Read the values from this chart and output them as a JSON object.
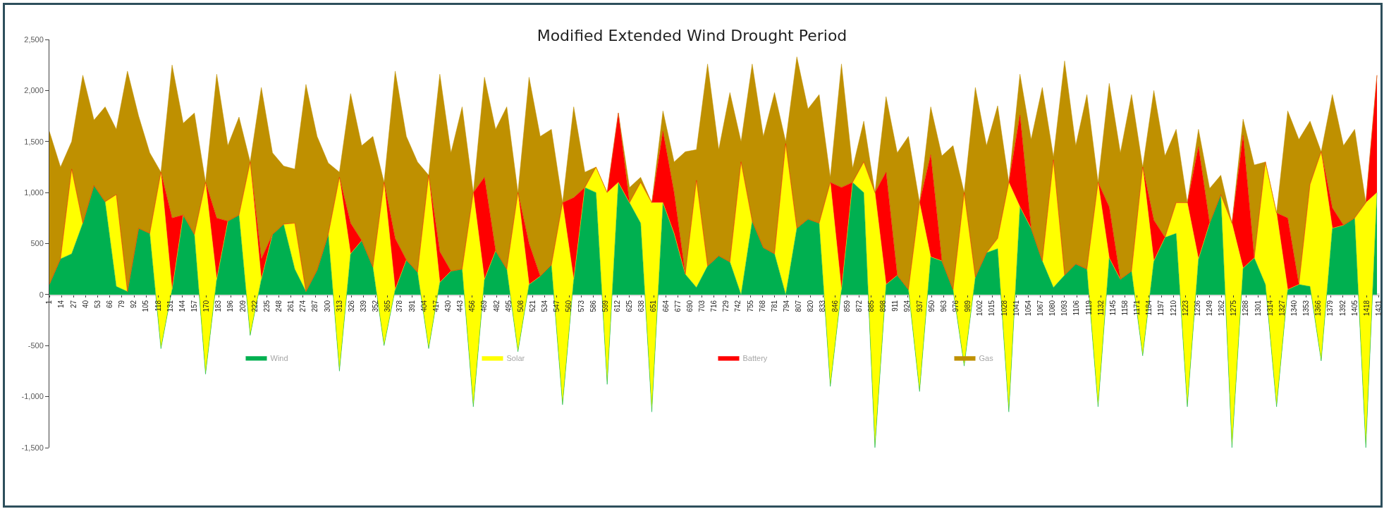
{
  "chart_data": {
    "type": "area",
    "title": "Modified Extended Wind Drought Period",
    "stacked": true,
    "legend": "bottom",
    "grid": false,
    "x": [
      1,
      13,
      25,
      37,
      49,
      61,
      73,
      85,
      97,
      109,
      121,
      133,
      145,
      157,
      169,
      181,
      193,
      205,
      217,
      229,
      241,
      253,
      265,
      277,
      289,
      301,
      313,
      325,
      337,
      349,
      361,
      373,
      385,
      397,
      409,
      421,
      433,
      445,
      457,
      469,
      481,
      493,
      505,
      517,
      529,
      541,
      553,
      565,
      577,
      589,
      601,
      613,
      625,
      637,
      649,
      661,
      673,
      685,
      697,
      709,
      721,
      733,
      745,
      757,
      769,
      781,
      793,
      805,
      817,
      829,
      841,
      853,
      865,
      877,
      889,
      901,
      913,
      925,
      937,
      949,
      961,
      973,
      985,
      997,
      1009,
      1021,
      1033,
      1045,
      1057,
      1069,
      1081,
      1093,
      1105,
      1117,
      1129,
      1141,
      1153,
      1165,
      1177,
      1189,
      1201,
      1213,
      1225,
      1237,
      1249,
      1261,
      1273,
      1285,
      1297,
      1309,
      1321,
      1333,
      1345,
      1357,
      1369,
      1381,
      1393,
      1405,
      1417,
      1429
    ],
    "xlim": [
      1,
      1432
    ],
    "xticks": [
      1,
      14,
      27,
      40,
      53,
      66,
      79,
      92,
      105,
      118,
      131,
      144,
      157,
      170,
      183,
      196,
      209,
      222,
      235,
      248,
      261,
      274,
      287,
      300,
      313,
      326,
      339,
      352,
      365,
      378,
      391,
      404,
      417,
      430,
      443,
      456,
      469,
      482,
      495,
      508,
      521,
      534,
      547,
      560,
      573,
      586,
      599,
      612,
      625,
      638,
      651,
      664,
      677,
      690,
      703,
      716,
      729,
      742,
      755,
      768,
      781,
      794,
      807,
      820,
      833,
      846,
      859,
      872,
      885,
      898,
      911,
      924,
      937,
      950,
      963,
      976,
      989,
      1002,
      1015,
      1028,
      1041,
      1054,
      1067,
      1080,
      1093,
      1106,
      1119,
      1132,
      1145,
      1158,
      1171,
      1184,
      1197,
      1210,
      1223,
      1236,
      1249,
      1262,
      1275,
      1288,
      1301,
      1314,
      1327,
      1340,
      1353,
      1366,
      1379,
      1392,
      1405,
      1418,
      1431
    ],
    "ylim": [
      -1500,
      2500
    ],
    "yticks": [
      {
        "value": -1500,
        "label": "-1,500"
      },
      {
        "value": -1000,
        "label": "-1,000"
      },
      -500,
      0,
      500,
      {
        "value": 1000,
        "label": "1,000"
      },
      {
        "value": 1500,
        "label": "1,500"
      },
      {
        "value": 2000,
        "label": "2,000"
      },
      {
        "value": 2500,
        "label": "2,500"
      }
    ],
    "series": [
      {
        "name": "Wind",
        "color": "#00b050",
        "values": [
          100,
          350,
          400,
          700,
          1070,
          910,
          80,
          30,
          650,
          600,
          -530,
          50,
          780,
          590,
          -780,
          150,
          720,
          780,
          -400,
          150,
          590,
          690,
          250,
          30,
          240,
          590,
          -750,
          400,
          530,
          270,
          -500,
          50,
          340,
          220,
          -530,
          120,
          230,
          250,
          -1100,
          150,
          430,
          250,
          -560,
          100,
          180,
          290,
          -1080,
          150,
          1050,
          1000,
          -880,
          1100,
          900,
          700,
          -1150,
          900,
          600,
          200,
          70,
          280,
          380,
          320,
          0,
          720,
          460,
          400,
          0,
          650,
          740,
          700,
          -900,
          50,
          1100,
          1000,
          -1500,
          100,
          190,
          50,
          -950,
          370,
          330,
          50,
          -700,
          170,
          410,
          450,
          -1150,
          860,
          650,
          330,
          70,
          190,
          300,
          250,
          -1100,
          360,
          150,
          230,
          -600,
          330,
          560,
          600,
          -1100,
          350,
          700,
          980,
          -1500,
          260,
          360,
          100,
          -1100,
          50,
          100,
          80,
          -650,
          650,
          680,
          750,
          -1500,
          1000
        ]
      },
      {
        "name": "Solar",
        "color": "#ffff00",
        "values": [
          0,
          0,
          830,
          0,
          0,
          0,
          900,
          0,
          0,
          0,
          1730,
          0,
          0,
          0,
          1880,
          0,
          0,
          0,
          1700,
          0,
          0,
          0,
          450,
          0,
          0,
          0,
          1900,
          0,
          0,
          0,
          1600,
          0,
          0,
          0,
          1700,
          0,
          0,
          0,
          2100,
          0,
          0,
          0,
          1560,
          0,
          0,
          0,
          1980,
          0,
          0,
          250,
          1880,
          0,
          0,
          400,
          2050,
          0,
          0,
          0,
          1050,
          0,
          0,
          0,
          1300,
          0,
          0,
          0,
          1480,
          0,
          0,
          0,
          2000,
          0,
          0,
          300,
          2500,
          0,
          0,
          0,
          1850,
          0,
          0,
          0,
          1700,
          0,
          0,
          100,
          2250,
          0,
          0,
          0,
          1250,
          0,
          0,
          0,
          2200,
          0,
          0,
          0,
          1850,
          0,
          0,
          300,
          2000,
          0,
          0,
          0,
          2200,
          0,
          0,
          1200,
          1900,
          0,
          0,
          1000,
          2050,
          0,
          0,
          0,
          2400,
          0
        ]
      },
      {
        "name": "Battery",
        "color": "#ff0000",
        "values": [
          0,
          0,
          0,
          0,
          0,
          0,
          0,
          0,
          0,
          0,
          0,
          700,
          0,
          0,
          0,
          600,
          0,
          0,
          0,
          200,
          0,
          0,
          0,
          0,
          0,
          0,
          0,
          300,
          0,
          0,
          0,
          500,
          0,
          0,
          0,
          300,
          0,
          0,
          0,
          1000,
          0,
          0,
          0,
          400,
          0,
          0,
          0,
          800,
          0,
          0,
          0,
          680,
          0,
          0,
          0,
          700,
          400,
          0,
          0,
          0,
          0,
          0,
          0,
          0,
          0,
          0,
          0,
          0,
          0,
          0,
          0,
          1000,
          0,
          0,
          0,
          1100,
          0,
          0,
          0,
          1000,
          0,
          0,
          0,
          0,
          0,
          0,
          0,
          900,
          0,
          0,
          0,
          0,
          0,
          0,
          0,
          500,
          0,
          0,
          0,
          400,
          0,
          0,
          0,
          1100,
          0,
          0,
          0,
          1300,
          0,
          0,
          0,
          700,
          0,
          0,
          0,
          200,
          0,
          0,
          0,
          1150
        ]
      },
      {
        "name": "Gas",
        "color": "#bf9000",
        "values": [
          1500,
          900,
          270,
          1450,
          640,
          930,
          640,
          2160,
          1100,
          790,
          0,
          1500,
          900,
          1190,
          0,
          1410,
          740,
          960,
          0,
          1680,
          800,
          570,
          530,
          2030,
          1310,
          700,
          50,
          1270,
          930,
          1280,
          0,
          1640,
          1210,
          1080,
          0,
          1740,
          1160,
          1590,
          0,
          980,
          1190,
          1590,
          0,
          1630,
          1370,
          1330,
          0,
          890,
          150,
          0,
          0,
          0,
          150,
          50,
          0,
          200,
          300,
          1200,
          300,
          1980,
          1040,
          1660,
          200,
          1540,
          1090,
          1580,
          20,
          1680,
          1080,
          1260,
          50,
          1210,
          140,
          400,
          0,
          740,
          1200,
          1500,
          0,
          470,
          1030,
          1410,
          0,
          1860,
          1050,
          1300,
          0,
          400,
          870,
          1700,
          30,
          2100,
          1160,
          1710,
          0,
          1210,
          1240,
          1730,
          0,
          1270,
          800,
          720,
          0,
          170,
          340,
          190,
          0,
          160,
          910,
          0,
          0,
          1050,
          1420,
          620,
          0,
          1110,
          780,
          870,
          0,
          0
        ]
      }
    ]
  }
}
